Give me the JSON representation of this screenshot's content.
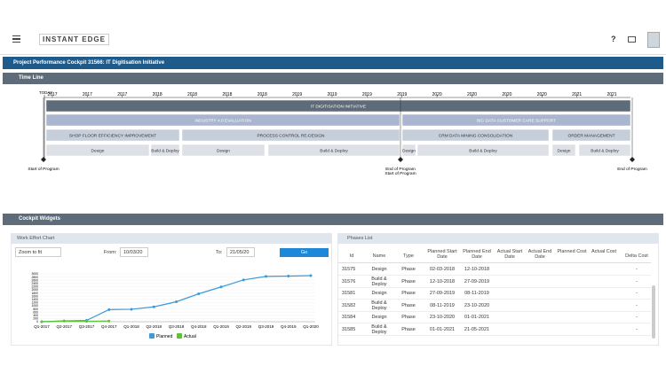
{
  "header": {
    "logo": "INSTANT EDGE",
    "help": "?"
  },
  "project_bar": {
    "title": "Project Performance Cockpit 31566: IT Digitisation Initiative"
  },
  "timeline": {
    "title": "Time Line",
    "today": "TODAY",
    "years": [
      "2017",
      "2017",
      "2017",
      "2018",
      "2018",
      "2018",
      "2018",
      "2019",
      "2019",
      "2019",
      "2019",
      "2020",
      "2020",
      "2020",
      "2020",
      "2021",
      "2021"
    ],
    "rows": [
      [
        "IT DIGITISATION INITIATIVE"
      ],
      [
        "INDUSTRY 4.0 EVALUATION",
        "BIG DATA CUSTOMER CARE SUPPORT"
      ],
      [
        "SHOP FLOOR EFFICIENCY IMPROVEMENT",
        "PROCESS CONTROL RE-DESIGN",
        "CRM DATA MINING CONSOLIDATION",
        "ORDER MANAGEMENT"
      ],
      [
        "Design",
        "Build & Deploy",
        "Design",
        "Build & Deploy",
        "Design",
        "Build & Deploy",
        "Design",
        "Build & Deploy"
      ]
    ],
    "milestones": [
      [
        "Start of Program"
      ],
      [
        "End of Program",
        "Start of Program"
      ],
      [
        "End of Program"
      ]
    ]
  },
  "widgets": {
    "title": "Cockpit Widgets"
  },
  "controls": {
    "zoom": "Zoom to fit",
    "from_label": "From:",
    "from": "10/03/20",
    "to_label": "To:",
    "to": "21/05/20",
    "go": "Go"
  },
  "chart_data": {
    "type": "line",
    "title": "Work Effort Chart",
    "categories": [
      "Q1-2017",
      "Q2-2017",
      "Q3-2017",
      "Q4-2017",
      "Q1-2018",
      "Q2-2018",
      "Q3-2018",
      "Q4-2018",
      "Q1-2019",
      "Q2-2019",
      "Q3-2019",
      "Q4-2019",
      "Q1-2020"
    ],
    "series": [
      {
        "name": "Planned",
        "color": "#3b9ad9",
        "values": [
          0,
          50,
          80,
          760,
          780,
          930,
          1250,
          1750,
          2180,
          2620,
          2840,
          2860,
          2890
        ]
      },
      {
        "name": "Actual",
        "color": "#5cc431",
        "values": [
          0,
          40,
          30,
          40,
          null,
          null,
          null,
          null,
          null,
          null,
          null,
          null,
          null
        ]
      }
    ],
    "ylim": [
      0,
      3000
    ],
    "yticks": [
      0,
      200,
      400,
      600,
      800,
      1000,
      1200,
      1400,
      1600,
      1800,
      2000,
      2200,
      2400,
      2600,
      2800,
      3000
    ],
    "grid": true
  },
  "table": {
    "title": "Phases List",
    "columns": [
      "Id",
      "Name",
      "Type",
      "Planned Start Date",
      "Planned End Date",
      "Actual Start Date",
      "Actual End Date",
      "Planned Cost",
      "Actual Cost",
      "Delta Cost"
    ],
    "rows": [
      [
        "31575",
        "Design",
        "Phase",
        "02-03-2018",
        "12-10-2018",
        null,
        null,
        null,
        null,
        "-"
      ],
      [
        "31576",
        "Build & Deploy",
        "Phase",
        "12-10-2018",
        "27-09-2019",
        null,
        null,
        null,
        null,
        "-"
      ],
      [
        "31581",
        "Design",
        "Phase",
        "27-09-2019",
        "08-11-2019",
        null,
        null,
        null,
        null,
        "-"
      ],
      [
        "31582",
        "Build & Deploy",
        "Phase",
        "08-11-2019",
        "23-10-2020",
        null,
        null,
        null,
        null,
        "-"
      ],
      [
        "31584",
        "Design",
        "Phase",
        "23-10-2020",
        "01-01-2021",
        null,
        null,
        null,
        null,
        "-"
      ],
      [
        "31585",
        "Build & Deploy",
        "Phase",
        "01-01-2021",
        "21-05-2021",
        null,
        null,
        null,
        null,
        "-"
      ]
    ]
  }
}
